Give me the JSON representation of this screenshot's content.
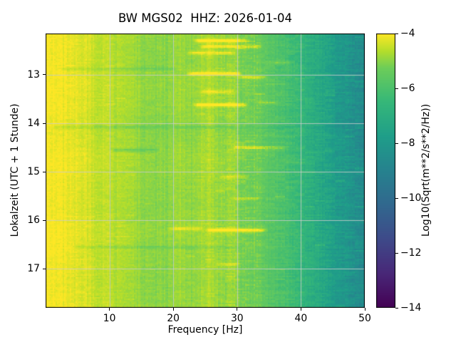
{
  "figure": {
    "title": "BW MGS02  HHZ: 2026-01-04"
  },
  "chart_data": {
    "type": "heatmap",
    "title": "BW MGS02  HHZ: 2026-01-04",
    "xlabel": "Frequency [Hz]",
    "ylabel": "Lokalzeit (UTC + 1 Stunde)",
    "x_range": [
      0,
      50
    ],
    "y_range": [
      12.15,
      17.8
    ],
    "y_axis_direction": "down",
    "x_ticks": [
      10,
      20,
      30,
      40,
      50
    ],
    "y_ticks": [
      13,
      14,
      15,
      16,
      17
    ],
    "grid": true,
    "colormap": "viridis",
    "colorbar": {
      "label": "Log10(Sqrt(m**2/s**2/Hz))",
      "ticks": [
        -4,
        -6,
        -8,
        -10,
        -12,
        -14
      ],
      "vmin": -14,
      "vmax": -4
    },
    "freq_bins": [
      0.5,
      2,
      4,
      6,
      8,
      10,
      14,
      18,
      22,
      26,
      30,
      34,
      38,
      42,
      46,
      50
    ],
    "time_bins": [
      12.15,
      12.7,
      13.2,
      13.7,
      14.2,
      14.7,
      15.2,
      15.7,
      16.2,
      16.7,
      17.3,
      17.8
    ],
    "values": [
      [
        -4.05,
        -4.08,
        -4.18,
        -4.3,
        -4.45,
        -4.6,
        -4.85,
        -5.0,
        -4.98,
        -4.95,
        -5.1,
        -5.5,
        -6.1,
        -7.0,
        -7.9,
        -8.6
      ],
      [
        -4.09,
        -4.12,
        -4.22,
        -4.34,
        -4.49,
        -4.64,
        -4.89,
        -5.04,
        -5.02,
        -4.99,
        -5.14,
        -5.54,
        -6.14,
        -7.04,
        -7.94,
        -8.64
      ],
      [
        -4.01,
        -4.04,
        -4.14,
        -4.26,
        -4.41,
        -4.56,
        -4.81,
        -4.96,
        -4.94,
        -4.91,
        -5.06,
        -5.46,
        -6.06,
        -6.96,
        -7.86,
        -8.56
      ],
      [
        -4.05,
        -4.08,
        -4.18,
        -4.3,
        -4.45,
        -4.6,
        -4.85,
        -5.0,
        -4.98,
        -4.95,
        -5.1,
        -5.5,
        -6.1,
        -7.0,
        -7.9,
        -8.6
      ],
      [
        -4.13,
        -4.16,
        -4.26,
        -4.38,
        -4.53,
        -4.68,
        -4.93,
        -5.08,
        -5.06,
        -5.03,
        -5.18,
        -5.58,
        -6.18,
        -7.08,
        -7.98,
        -8.68
      ],
      [
        -4.01,
        -4.04,
        -4.14,
        -4.26,
        -4.41,
        -4.56,
        -4.81,
        -4.96,
        -4.94,
        -4.91,
        -5.06,
        -5.46,
        -6.06,
        -6.96,
        -7.86,
        -8.56
      ],
      [
        -4.05,
        -4.08,
        -4.18,
        -4.3,
        -4.45,
        -4.6,
        -4.85,
        -5.0,
        -4.98,
        -4.95,
        -5.1,
        -5.5,
        -6.1,
        -7.0,
        -7.9,
        -8.6
      ],
      [
        -4.09,
        -4.12,
        -4.22,
        -4.34,
        -4.49,
        -4.64,
        -4.89,
        -5.04,
        -5.02,
        -4.99,
        -5.14,
        -5.54,
        -6.14,
        -7.04,
        -7.94,
        -8.64
      ],
      [
        -4.01,
        -4.04,
        -4.14,
        -4.26,
        -4.41,
        -4.56,
        -4.81,
        -4.96,
        -4.94,
        -4.91,
        -5.06,
        -5.46,
        -6.06,
        -6.96,
        -7.86,
        -8.56
      ],
      [
        -4.05,
        -4.08,
        -4.18,
        -4.3,
        -4.45,
        -4.6,
        -4.85,
        -5.0,
        -4.98,
        -4.95,
        -5.1,
        -5.5,
        -6.1,
        -7.0,
        -7.9,
        -8.6
      ],
      [
        -4.09,
        -4.12,
        -4.22,
        -4.34,
        -4.49,
        -4.64,
        -4.89,
        -5.04,
        -5.02,
        -4.99,
        -5.14,
        -5.54,
        -6.14,
        -7.04,
        -7.94,
        -8.64
      ],
      [
        -4.05,
        -4.08,
        -4.18,
        -4.3,
        -4.45,
        -4.6,
        -4.85,
        -5.0,
        -4.98,
        -4.95,
        -5.1,
        -5.5,
        -6.1,
        -7.0,
        -7.9,
        -8.6
      ]
    ],
    "bright_streaks": [
      {
        "t": 12.3,
        "f1": 24,
        "f2": 31,
        "dv": 1.2
      },
      {
        "t": 12.42,
        "f1": 25,
        "f2": 33,
        "dv": 0.9
      },
      {
        "t": 12.55,
        "f1": 23,
        "f2": 29,
        "dv": 0.8
      },
      {
        "t": 12.75,
        "f1": 35,
        "f2": 38,
        "dv": 0.6
      },
      {
        "t": 12.88,
        "f1": 3,
        "f2": 20,
        "dv": -0.3
      },
      {
        "t": 12.98,
        "f1": 23,
        "f2": 30,
        "dv": 1.3
      },
      {
        "t": 13.05,
        "f1": 31,
        "f2": 34,
        "dv": 0.8
      },
      {
        "t": 13.35,
        "f1": 25,
        "f2": 29,
        "dv": 0.7
      },
      {
        "t": 13.58,
        "f1": 34,
        "f2": 36,
        "dv": 0.6
      },
      {
        "t": 13.62,
        "f1": 24,
        "f2": 31,
        "dv": 1.2
      },
      {
        "t": 14.08,
        "f1": 2,
        "f2": 38,
        "dv": -0.35
      },
      {
        "t": 14.5,
        "f1": 30,
        "f2": 37,
        "dv": 0.9
      },
      {
        "t": 14.55,
        "f1": 11,
        "f2": 17,
        "dv": -0.5
      },
      {
        "t": 15.1,
        "f1": 28,
        "f2": 31,
        "dv": 0.6
      },
      {
        "t": 15.55,
        "f1": 30,
        "f2": 33,
        "dv": 0.6
      },
      {
        "t": 16.17,
        "f1": 20,
        "f2": 24,
        "dv": 0.7
      },
      {
        "t": 16.2,
        "f1": 26,
        "f2": 34,
        "dv": 1.4
      },
      {
        "t": 16.55,
        "f1": 5,
        "f2": 30,
        "dv": -0.3
      },
      {
        "t": 16.9,
        "f1": 27,
        "f2": 30,
        "dv": 0.5
      }
    ],
    "bright_columns": [
      {
        "f": 25.5,
        "w": 1.5,
        "dv": 0.28
      },
      {
        "f": 29.3,
        "w": 1.0,
        "dv": 0.22
      },
      {
        "f": 21.0,
        "w": 0.8,
        "dv": 0.18
      },
      {
        "f": 33.0,
        "w": 0.7,
        "dv": 0.15
      }
    ]
  }
}
